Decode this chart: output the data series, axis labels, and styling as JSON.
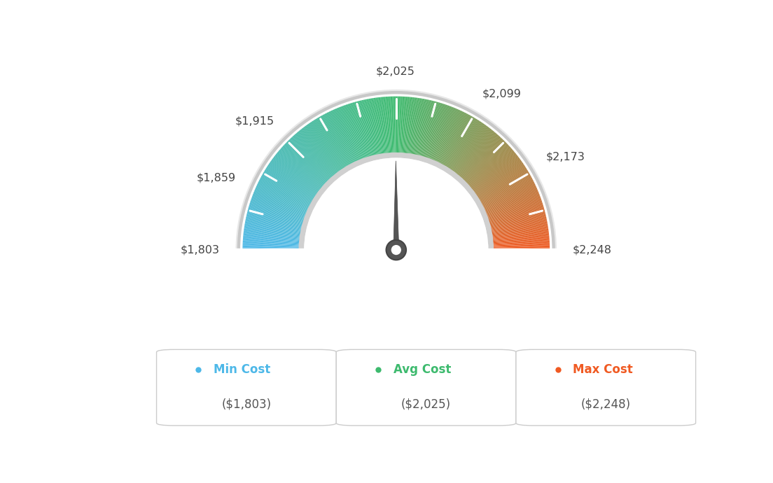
{
  "min_val": 1803,
  "avg_val": 2025,
  "max_val": 2248,
  "tick_labels": [
    "$1,803",
    "$1,859",
    "$1,915",
    "$2,025",
    "$2,099",
    "$2,173",
    "$2,248"
  ],
  "tick_values": [
    1803,
    1859,
    1915,
    2025,
    2099,
    2173,
    2248
  ],
  "legend": [
    {
      "label": "Min Cost",
      "sublabel": "($1,803)",
      "color": "#4db8e8"
    },
    {
      "label": "Avg Cost",
      "sublabel": "($2,025)",
      "color": "#3dba6e"
    },
    {
      "label": "Max Cost",
      "sublabel": "($2,248)",
      "color": "#f05a22"
    }
  ],
  "background_color": "#ffffff",
  "needle_value": 2025,
  "color_stops": [
    [
      0.0,
      [
        77,
        184,
        232
      ]
    ],
    [
      0.5,
      [
        61,
        186,
        110
      ]
    ],
    [
      1.0,
      [
        240,
        90,
        34
      ]
    ]
  ]
}
